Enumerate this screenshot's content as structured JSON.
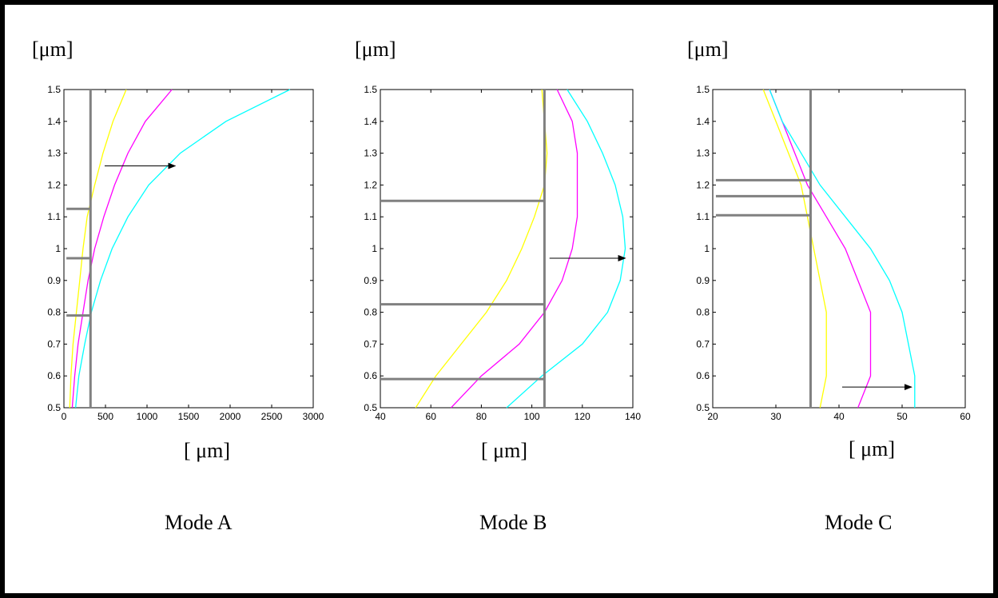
{
  "chart_data": [
    {
      "type": "line",
      "title": "",
      "caption": "Mode A",
      "ylabel": "[μm]",
      "xlabel": "[ μm]",
      "xlim": [
        0,
        3000
      ],
      "ylim": [
        0.5,
        1.5
      ],
      "xticks": [
        0,
        500,
        1000,
        1500,
        2000,
        2500,
        3000
      ],
      "yticks": [
        0.5,
        0.6,
        0.7,
        0.8,
        0.9,
        1,
        1.1,
        1.2,
        1.3,
        1.4,
        1.5
      ],
      "series": [
        {
          "color": "#ffff00",
          "points": [
            [
              70,
              0.5
            ],
            [
              85,
              0.6
            ],
            [
              110,
              0.7
            ],
            [
              150,
              0.8
            ],
            [
              190,
              0.9
            ],
            [
              230,
              1.0
            ],
            [
              280,
              1.1
            ],
            [
              370,
              1.2
            ],
            [
              470,
              1.3
            ],
            [
              590,
              1.4
            ],
            [
              750,
              1.5
            ]
          ]
        },
        {
          "color": "#ff00ff",
          "points": [
            [
              100,
              0.5
            ],
            [
              130,
              0.6
            ],
            [
              170,
              0.7
            ],
            [
              230,
              0.8
            ],
            [
              290,
              0.9
            ],
            [
              370,
              1.0
            ],
            [
              480,
              1.1
            ],
            [
              610,
              1.2
            ],
            [
              770,
              1.3
            ],
            [
              980,
              1.4
            ],
            [
              1300,
              1.5
            ]
          ]
        },
        {
          "color": "#00ffff",
          "points": [
            [
              140,
              0.5
            ],
            [
              180,
              0.6
            ],
            [
              250,
              0.7
            ],
            [
              330,
              0.8
            ],
            [
              440,
              0.9
            ],
            [
              580,
              1.0
            ],
            [
              770,
              1.1
            ],
            [
              1020,
              1.2
            ],
            [
              1400,
              1.3
            ],
            [
              1950,
              1.4
            ],
            [
              2720,
              1.5
            ]
          ]
        }
      ],
      "ref_lines": {
        "color": "#808080",
        "vertical_x": 320,
        "horizontal": [
          {
            "y": 1.125,
            "x_from": 30,
            "x_to": 320
          },
          {
            "y": 0.97,
            "x_from": 30,
            "x_to": 320
          },
          {
            "y": 0.79,
            "x_from": 30,
            "x_to": 320
          }
        ]
      },
      "arrow": {
        "from": [
          490,
          1.26
        ],
        "to": [
          1340,
          1.26
        ],
        "color": "#000000"
      }
    },
    {
      "type": "line",
      "title": "",
      "caption": "Mode B",
      "ylabel": "[μm]",
      "xlabel": "[ μm]",
      "xlim": [
        40,
        140
      ],
      "ylim": [
        0.5,
        1.5
      ],
      "xticks": [
        40,
        60,
        80,
        100,
        120,
        140
      ],
      "yticks": [
        0.5,
        0.6,
        0.7,
        0.8,
        0.9,
        1,
        1.1,
        1.2,
        1.3,
        1.4,
        1.5
      ],
      "series": [
        {
          "color": "#ffff00",
          "points": [
            [
              54,
              0.5
            ],
            [
              62,
              0.6
            ],
            [
              72,
              0.7
            ],
            [
              82,
              0.8
            ],
            [
              90,
              0.9
            ],
            [
              96,
              1.0
            ],
            [
              101,
              1.1
            ],
            [
              105,
              1.2
            ],
            [
              106,
              1.3
            ],
            [
              105,
              1.4
            ],
            [
              104,
              1.5
            ]
          ]
        },
        {
          "color": "#ff00ff",
          "points": [
            [
              68,
              0.5
            ],
            [
              80,
              0.6
            ],
            [
              95,
              0.7
            ],
            [
              105,
              0.8
            ],
            [
              112,
              0.9
            ],
            [
              116,
              1.0
            ],
            [
              118,
              1.1
            ],
            [
              118,
              1.2
            ],
            [
              118,
              1.3
            ],
            [
              116,
              1.4
            ],
            [
              110,
              1.5
            ]
          ]
        },
        {
          "color": "#00ffff",
          "points": [
            [
              90,
              0.5
            ],
            [
              104,
              0.6
            ],
            [
              120,
              0.7
            ],
            [
              130,
              0.8
            ],
            [
              135,
              0.9
            ],
            [
              137,
              1.0
            ],
            [
              136,
              1.1
            ],
            [
              133,
              1.2
            ],
            [
              128,
              1.3
            ],
            [
              122,
              1.4
            ],
            [
              114,
              1.5
            ]
          ]
        }
      ],
      "ref_lines": {
        "color": "#808080",
        "vertical_x": 105,
        "horizontal": [
          {
            "y": 1.15,
            "x_from": 40,
            "x_to": 105
          },
          {
            "y": 0.825,
            "x_from": 40,
            "x_to": 105
          },
          {
            "y": 0.59,
            "x_from": 40,
            "x_to": 105
          }
        ]
      },
      "arrow": {
        "from": [
          107,
          0.97
        ],
        "to": [
          137,
          0.97
        ],
        "color": "#000000"
      }
    },
    {
      "type": "line",
      "title": "",
      "caption": "Mode C",
      "ylabel": "[μm]",
      "xlabel": "[ μm]",
      "xlim": [
        20,
        60
      ],
      "ylim": [
        0.5,
        1.5
      ],
      "xticks": [
        20,
        30,
        40,
        50,
        60
      ],
      "yticks": [
        0.5,
        0.6,
        0.7,
        0.8,
        0.9,
        1,
        1.1,
        1.2,
        1.3,
        1.4,
        1.5
      ],
      "series": [
        {
          "color": "#ffff00",
          "points": [
            [
              37,
              0.5
            ],
            [
              38,
              0.6
            ],
            [
              38,
              0.7
            ],
            [
              38,
              0.8
            ],
            [
              37,
              0.9
            ],
            [
              36,
              1.0
            ],
            [
              35,
              1.1
            ],
            [
              34,
              1.2
            ],
            [
              32,
              1.3
            ],
            [
              30,
              1.4
            ],
            [
              28,
              1.5
            ]
          ]
        },
        {
          "color": "#ff00ff",
          "points": [
            [
              43,
              0.5
            ],
            [
              45,
              0.6
            ],
            [
              45,
              0.7
            ],
            [
              45,
              0.8
            ],
            [
              43,
              0.9
            ],
            [
              41,
              1.0
            ],
            [
              38,
              1.1
            ],
            [
              35,
              1.2
            ],
            [
              33,
              1.3
            ],
            [
              31,
              1.4
            ],
            [
              29,
              1.5
            ]
          ]
        },
        {
          "color": "#00ffff",
          "points": [
            [
              52,
              0.5
            ],
            [
              52,
              0.6
            ],
            [
              51,
              0.7
            ],
            [
              50,
              0.8
            ],
            [
              48,
              0.9
            ],
            [
              45,
              1.0
            ],
            [
              41,
              1.1
            ],
            [
              37,
              1.2
            ],
            [
              34,
              1.3
            ],
            [
              31,
              1.4
            ],
            [
              29,
              1.5
            ]
          ]
        }
      ],
      "ref_lines": {
        "color": "#808080",
        "vertical_x": 35.5,
        "horizontal": [
          {
            "y": 1.215,
            "x_from": 20.5,
            "x_to": 35.5
          },
          {
            "y": 1.165,
            "x_from": 20.5,
            "x_to": 35.5
          },
          {
            "y": 1.105,
            "x_from": 20.5,
            "x_to": 35.5
          }
        ]
      },
      "arrow": {
        "from": [
          40.5,
          0.565
        ],
        "to": [
          51.5,
          0.565
        ],
        "color": "#000000"
      }
    }
  ]
}
